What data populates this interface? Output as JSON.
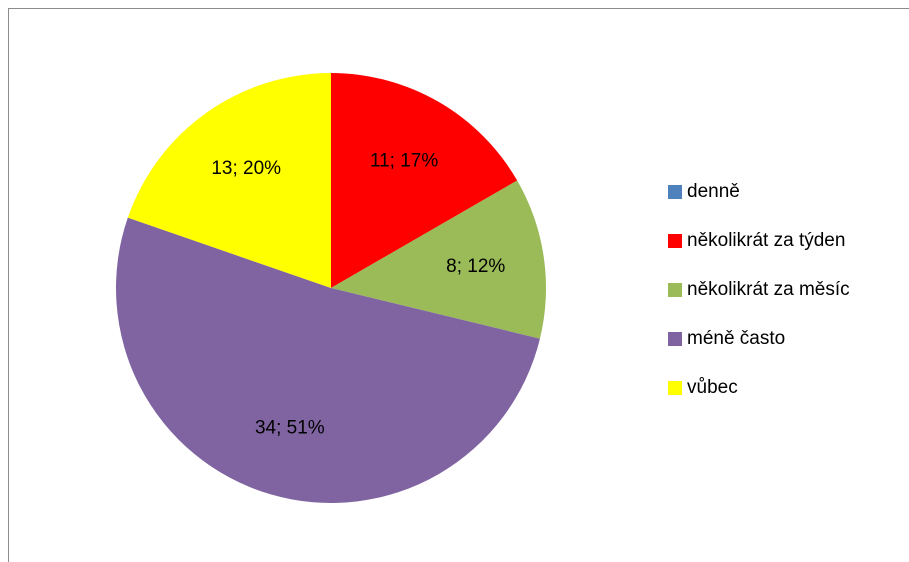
{
  "chart_data": {
    "type": "pie",
    "categories": [
      "denně",
      "několikrát za týden",
      "několikrát za měsíc",
      "méně často",
      "vůbec"
    ],
    "values": [
      0,
      11,
      8,
      34,
      13
    ],
    "value_labels": [
      null,
      "11; 17%",
      "8; 12%",
      "34; 51%",
      "13; 20%"
    ],
    "colors": [
      "#4f81bd",
      "#ff0000",
      "#9bbb59",
      "#8064a2",
      "#ffff00"
    ],
    "legend": "right"
  }
}
